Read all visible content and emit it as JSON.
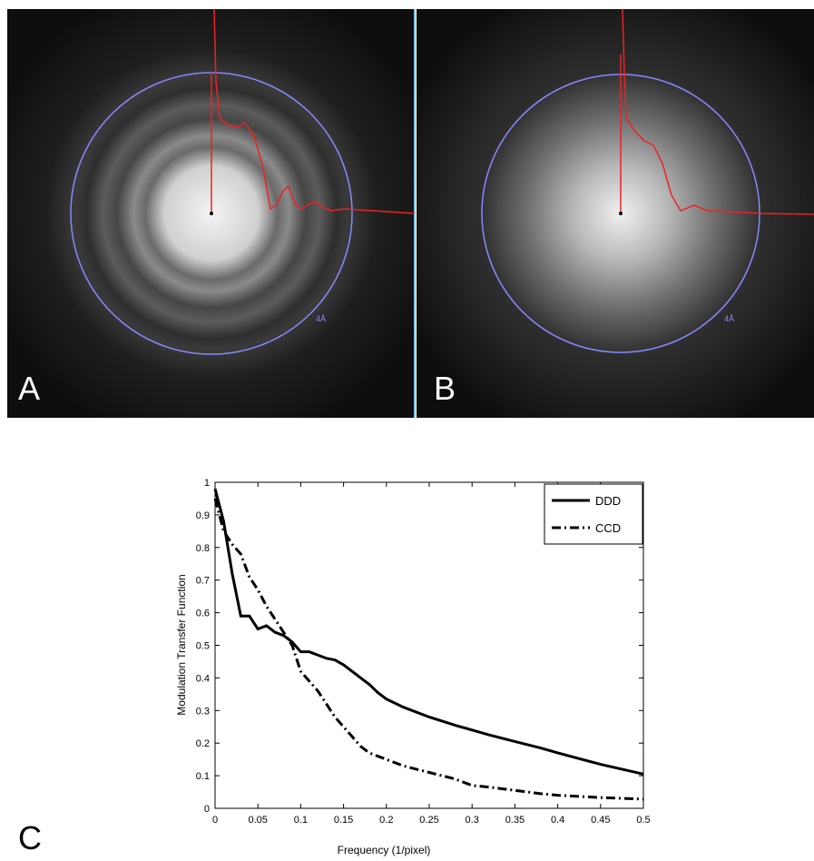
{
  "panels": [
    {
      "label": "A",
      "annotation": "4Å"
    },
    {
      "label": "B",
      "annotation": "4Å"
    },
    {
      "label": "C"
    }
  ],
  "chart_data": {
    "type": "line",
    "xlabel": "Frequency (1/pixel)",
    "ylabel": "Modulation Transfer Function",
    "x": [
      0,
      0.01,
      0.02,
      0.03,
      0.04,
      0.05,
      0.06,
      0.07,
      0.08,
      0.09,
      0.1,
      0.11,
      0.12,
      0.13,
      0.14,
      0.15,
      0.16,
      0.17,
      0.18,
      0.19,
      0.2,
      0.22,
      0.25,
      0.28,
      0.3,
      0.32,
      0.35,
      0.38,
      0.4,
      0.45,
      0.5
    ],
    "series": [
      {
        "name": "DDD",
        "color": "#000000",
        "line_style": "solid",
        "values": [
          0.98,
          0.88,
          0.72,
          0.59,
          0.59,
          0.55,
          0.56,
          0.54,
          0.53,
          0.51,
          0.48,
          0.48,
          0.47,
          0.46,
          0.455,
          0.44,
          0.42,
          0.4,
          0.38,
          0.355,
          0.335,
          0.31,
          0.28,
          0.255,
          0.24,
          0.225,
          0.205,
          0.185,
          0.17,
          0.135,
          0.105
        ]
      },
      {
        "name": "CCD",
        "color": "#000000",
        "line_style": "dash-dot",
        "values": [
          0.95,
          0.85,
          0.81,
          0.78,
          0.71,
          0.67,
          0.62,
          0.58,
          0.54,
          0.5,
          0.42,
          0.39,
          0.36,
          0.32,
          0.28,
          0.25,
          0.22,
          0.19,
          0.17,
          0.16,
          0.15,
          0.13,
          0.11,
          0.09,
          0.07,
          0.065,
          0.055,
          0.045,
          0.04,
          0.033,
          0.028
        ]
      }
    ],
    "xlim": [
      0,
      0.5
    ],
    "xticks": [
      0,
      0.05,
      0.1,
      0.15,
      0.2,
      0.25,
      0.3,
      0.35,
      0.4,
      0.45,
      0.5
    ],
    "ylim": [
      0,
      1
    ],
    "yticks": [
      0,
      0.1,
      0.2,
      0.3,
      0.4,
      0.5,
      0.6,
      0.7,
      0.8,
      0.9,
      1
    ],
    "legend": "upper-right"
  }
}
